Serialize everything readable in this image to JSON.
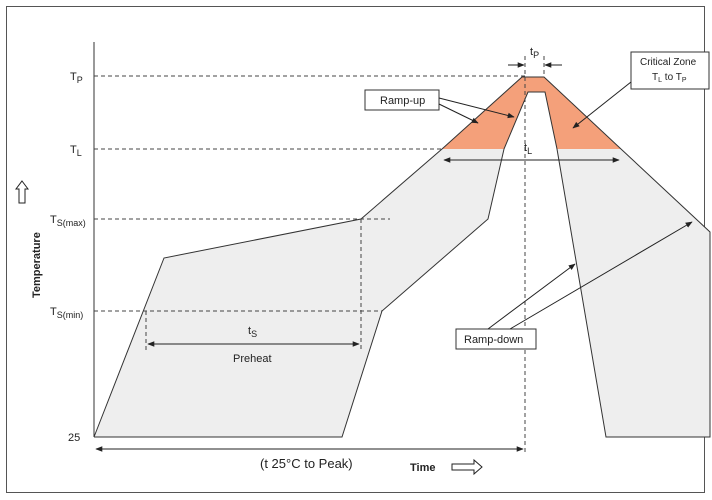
{
  "labels": {
    "tp": "T",
    "tp_sub": "P",
    "tl": "T",
    "tl_sub": "L",
    "tsmax": "T",
    "tsmax_sub": "S(max)",
    "tsmin": "T",
    "tsmin_sub": "S(min)",
    "t25": "25"
  },
  "axes": {
    "ylabel": "Temperature",
    "xlabel": "Time"
  },
  "annotations": {
    "tp_dur": "t",
    "tp_dur_sub": "P",
    "tl_dur": "t",
    "tl_dur_sub": "L",
    "ts_dur": "t",
    "ts_dur_sub": "S",
    "preheat": "Preheat",
    "t25_to_peak": "(t 25°C to Peak)",
    "ramp_up": "Ramp-up",
    "ramp_down": "Ramp-down",
    "critical_zone_line1": "Critical Zone",
    "critical_zone_line2_a": "T",
    "critical_zone_line2_a_sub": "L",
    "critical_zone_line2_b": " to T",
    "critical_zone_line2_b_sub": "P"
  },
  "colors": {
    "profile_fill": "#eeeeee",
    "critical_fill": "#f4a07a",
    "line": "#333333"
  }
}
